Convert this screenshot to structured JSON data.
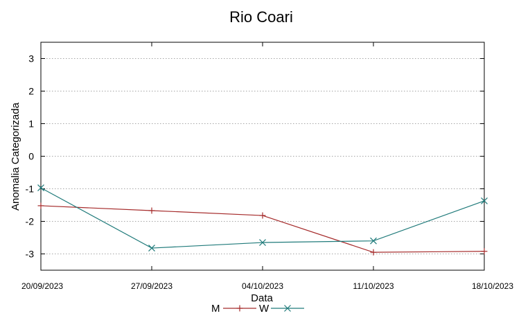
{
  "chart_data": {
    "type": "line",
    "title": "Rio Coari",
    "xlabel": "Data",
    "ylabel": "Anomalia Categorizada",
    "x": [
      "20/09/2023",
      "27/09/2023",
      "04/10/2023",
      "11/10/2023",
      "18/10/2023"
    ],
    "ylim": [
      -3.5,
      3.5
    ],
    "yticks": [
      3,
      2,
      1,
      0,
      -1,
      -2,
      -3
    ],
    "grid": true,
    "legend_position": "bottom-center",
    "series": [
      {
        "name": "M",
        "color": "#a52a2a",
        "marker": "plus",
        "values": [
          -1.52,
          -1.67,
          -1.82,
          -2.95,
          -2.92
        ]
      },
      {
        "name": "W",
        "color": "#1f7a7a",
        "marker": "x",
        "values": [
          -0.97,
          -2.82,
          -2.65,
          -2.6,
          -1.37
        ]
      }
    ]
  }
}
